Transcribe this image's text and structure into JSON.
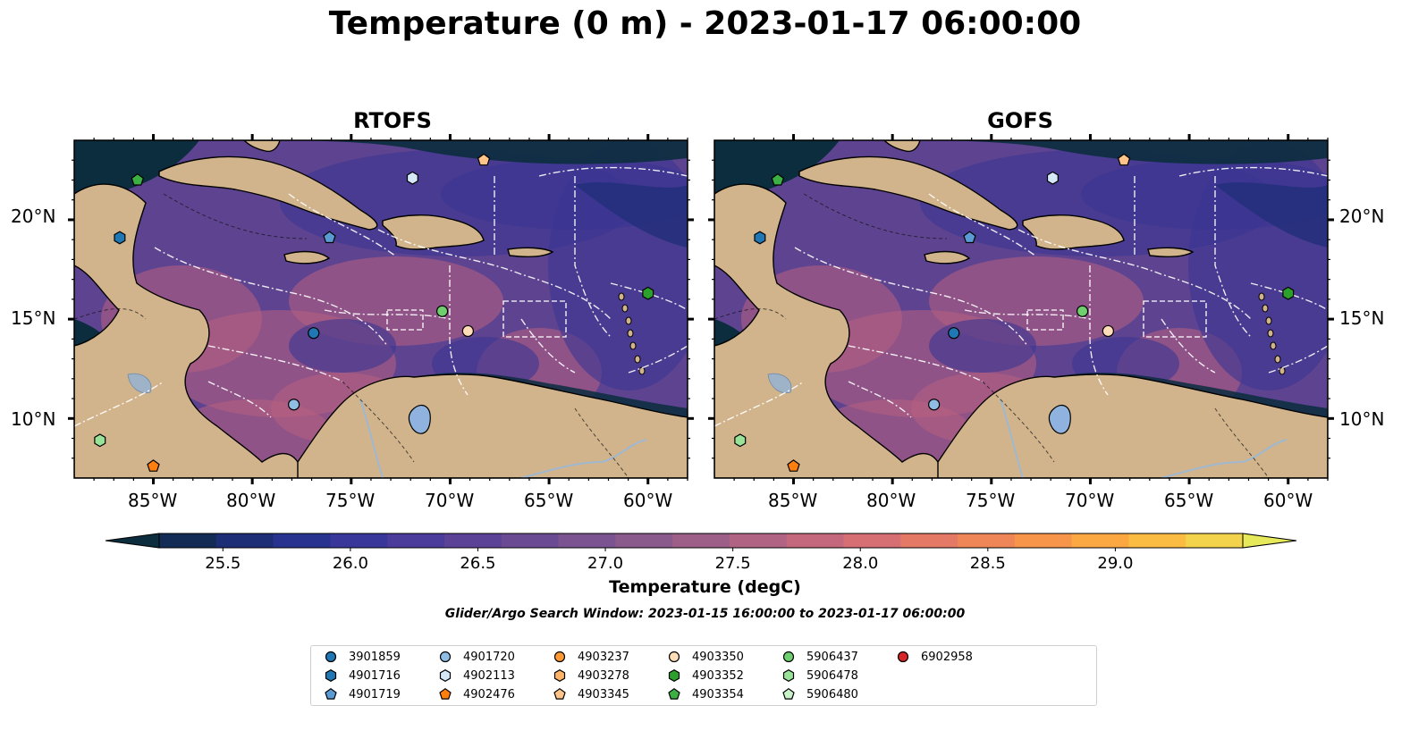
{
  "title": "Temperature (0 m) - 2023-01-17 06:00:00",
  "panels": [
    {
      "id": "rtofs",
      "title": "RTOFS"
    },
    {
      "id": "gofs",
      "title": "GOFS"
    }
  ],
  "axes": {
    "lon_labels": [
      "85°W",
      "80°W",
      "75°W",
      "70°W",
      "65°W",
      "60°W"
    ],
    "lat_labels": [
      "20°N",
      "15°N",
      "10°N"
    ]
  },
  "colorbar": {
    "label": "Temperature (degC)",
    "range": [
      25.25,
      29.5
    ],
    "ticks": [
      "25.5",
      "26.0",
      "26.5",
      "27.0",
      "27.5",
      "28.0",
      "28.5",
      "29.0"
    ],
    "tick_values": [
      25.5,
      26.0,
      26.5,
      27.0,
      27.5,
      28.0,
      28.5,
      29.0
    ],
    "colors": [
      "#0b2d3e",
      "#122c55",
      "#1d2e76",
      "#28338f",
      "#3a379b",
      "#4b3b9b",
      "#5b4297",
      "#6a4b93",
      "#7a5390",
      "#8a5a8c",
      "#9d5f88",
      "#b06383",
      "#c4687d",
      "#d56f73",
      "#e47966",
      "#ef8658",
      "#f7964b",
      "#fba843",
      "#fbbc43",
      "#f4d34c",
      "#e6ea5a"
    ],
    "extend": "both"
  },
  "search_window": "Glider/Argo Search Window: 2023-01-15 16:00:00 to 2023-01-17 06:00:00",
  "legend": {
    "items": [
      {
        "label": "3901859",
        "marker": "circle",
        "color": "#1f77b4"
      },
      {
        "label": "4901716",
        "marker": "hexagon",
        "color": "#1f77b4"
      },
      {
        "label": "4901719",
        "marker": "pentagon",
        "color": "#5a9bd4"
      },
      {
        "label": "4901720",
        "marker": "circle",
        "color": "#8fbde3"
      },
      {
        "label": "4902113",
        "marker": "hexagon",
        "color": "#d4e8f7"
      },
      {
        "label": "4902476",
        "marker": "pentagon",
        "color": "#ff7f0e"
      },
      {
        "label": "4903237",
        "marker": "circle",
        "color": "#ff9933"
      },
      {
        "label": "4903278",
        "marker": "hexagon",
        "color": "#ffb366"
      },
      {
        "label": "4903345",
        "marker": "pentagon",
        "color": "#ffc48a"
      },
      {
        "label": "4903350",
        "marker": "circle",
        "color": "#ffddb8"
      },
      {
        "label": "4903352",
        "marker": "hexagon",
        "color": "#2ca02c"
      },
      {
        "label": "4903354",
        "marker": "pentagon",
        "color": "#3cb043"
      },
      {
        "label": "5906437",
        "marker": "circle",
        "color": "#6fcf6f"
      },
      {
        "label": "5906478",
        "marker": "hexagon",
        "color": "#98e398"
      },
      {
        "label": "5906480",
        "marker": "pentagon",
        "color": "#c8f2c8"
      },
      {
        "label": "6902958",
        "marker": "circle",
        "color": "#d62728"
      }
    ]
  },
  "map_colors": {
    "land": "#d2b48c",
    "ocean_mid": "#5e4490",
    "ocean_warm": "#b8607f",
    "ocean_cool": "#3a3592",
    "ocean_deep": "#0b2d3e",
    "lake": "#8fb3de",
    "river": "#9fb8d0"
  },
  "markers": [
    {
      "lon": -85.8,
      "lat": 22.0,
      "marker": "pentagon",
      "color": "#3cb043"
    },
    {
      "lon": -86.7,
      "lat": 19.1,
      "marker": "hexagon",
      "color": "#1f77b4"
    },
    {
      "lon": -76.1,
      "lat": 19.1,
      "marker": "pentagon",
      "color": "#5a9bd4"
    },
    {
      "lon": -71.9,
      "lat": 22.1,
      "marker": "hexagon",
      "color": "#d4e8f7"
    },
    {
      "lon": -68.3,
      "lat": 23.0,
      "marker": "pentagon",
      "color": "#ffc48a"
    },
    {
      "lon": -60.0,
      "lat": 16.3,
      "marker": "hexagon",
      "color": "#2ca02c"
    },
    {
      "lon": -70.4,
      "lat": 15.4,
      "marker": "circle",
      "color": "#6fcf6f"
    },
    {
      "lon": -69.1,
      "lat": 14.4,
      "marker": "circle",
      "color": "#ffddb8"
    },
    {
      "lon": -76.9,
      "lat": 14.3,
      "marker": "circle",
      "color": "#1f77b4"
    },
    {
      "lon": -77.9,
      "lat": 10.7,
      "marker": "circle",
      "color": "#8fbde3"
    },
    {
      "lon": -87.7,
      "lat": 8.9,
      "marker": "hexagon",
      "color": "#98e398"
    },
    {
      "lon": -85.0,
      "lat": 7.6,
      "marker": "pentagon",
      "color": "#ff7f0e"
    }
  ]
}
